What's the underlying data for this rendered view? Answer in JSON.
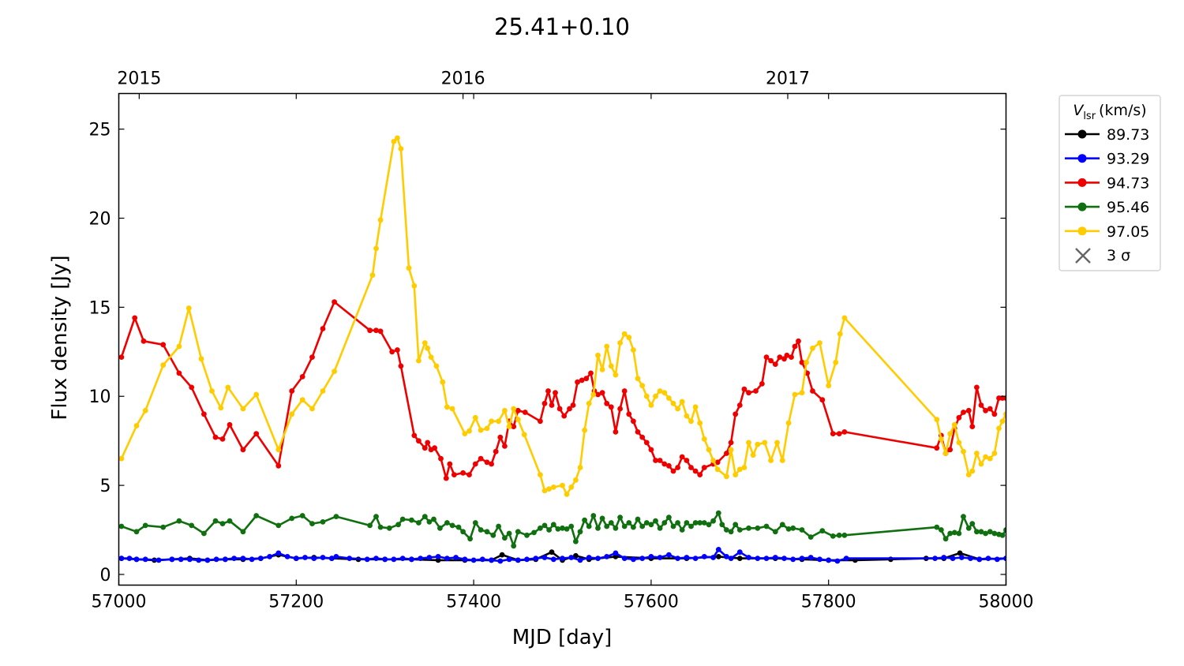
{
  "chart_data": {
    "type": "line",
    "title": "25.41+0.10",
    "xlabel": "MJD [day]",
    "ylabel": "Flux density [Jy]",
    "xlim": [
      57000,
      58000
    ],
    "ylim": [
      -0.6,
      27
    ],
    "x_ticks": [
      57000,
      57200,
      57400,
      57600,
      57800,
      58000
    ],
    "y_ticks": [
      0,
      5,
      10,
      15,
      20,
      25
    ],
    "top_axis": {
      "ticks": [
        {
          "label": "2015",
          "mjd": 57023
        },
        {
          "label": "2016",
          "mjd": 57388
        },
        {
          "label": "2017",
          "mjd": 57754
        }
      ]
    },
    "legend": {
      "title": "V_lsr (km/s)",
      "title_symbol": "V",
      "title_subscript": "lsr",
      "title_unit": "(km/s)",
      "placement": "outside right, top",
      "sigma_label": "3 σ",
      "sigma_color": "#666666"
    },
    "grid": false,
    "series": [
      {
        "name": "89.73",
        "color": "#000000",
        "x": [
          57003,
          57020,
          57040,
          57060,
          57080,
          57100,
          57120,
          57140,
          57160,
          57180,
          57200,
          57220,
          57240,
          57270,
          57300,
          57330,
          57360,
          57390,
          57420,
          57432,
          57450,
          57470,
          57488,
          57500,
          57515,
          57530,
          57560,
          57600,
          57640,
          57676,
          57700,
          57740,
          57770,
          57800,
          57830,
          57870,
          57910,
          57930,
          57948,
          57970,
          58000
        ],
        "y": [
          0.9,
          0.85,
          0.8,
          0.85,
          0.9,
          0.8,
          0.85,
          0.85,
          0.9,
          1.1,
          0.9,
          0.95,
          0.9,
          0.85,
          0.85,
          0.85,
          0.8,
          0.8,
          0.8,
          1.1,
          0.8,
          0.85,
          1.25,
          0.8,
          1.05,
          0.85,
          1.0,
          0.9,
          0.9,
          1.0,
          0.9,
          0.9,
          0.85,
          0.8,
          0.8,
          0.85,
          0.9,
          0.9,
          1.2,
          0.85,
          0.9
        ]
      },
      {
        "name": "93.29",
        "color": "#0000ff",
        "x": [
          57003,
          57012,
          57020,
          57030,
          57045,
          57060,
          57070,
          57080,
          57090,
          57100,
          57110,
          57120,
          57130,
          57140,
          57150,
          57160,
          57170,
          57180,
          57190,
          57200,
          57210,
          57220,
          57230,
          57240,
          57245,
          57260,
          57280,
          57290,
          57300,
          57310,
          57320,
          57330,
          57340,
          57350,
          57360,
          57370,
          57380,
          57390,
          57400,
          57410,
          57420,
          57430,
          57440,
          57450,
          57460,
          57470,
          57480,
          57490,
          57500,
          57510,
          57520,
          57530,
          57540,
          57550,
          57560,
          57570,
          57580,
          57590,
          57600,
          57610,
          57620,
          57630,
          57640,
          57650,
          57660,
          57670,
          57676,
          57685,
          57690,
          57700,
          57710,
          57720,
          57730,
          57740,
          57750,
          57760,
          57770,
          57780,
          57790,
          57800,
          57810,
          57820,
          57920,
          57930,
          57940,
          57950,
          57960,
          57970,
          57980,
          57990,
          58000
        ],
        "y": [
          0.9,
          0.9,
          0.85,
          0.85,
          0.8,
          0.85,
          0.85,
          0.85,
          0.8,
          0.8,
          0.85,
          0.85,
          0.9,
          0.9,
          0.85,
          0.9,
          1.0,
          1.2,
          1.0,
          0.9,
          0.95,
          0.9,
          0.95,
          0.9,
          1.0,
          0.9,
          0.85,
          0.9,
          0.85,
          0.85,
          0.9,
          0.85,
          0.9,
          0.95,
          1.0,
          0.9,
          0.95,
          0.85,
          0.8,
          0.85,
          0.8,
          0.75,
          0.85,
          0.8,
          0.85,
          0.9,
          0.95,
          0.85,
          0.9,
          0.95,
          0.8,
          0.95,
          0.9,
          1.0,
          1.2,
          0.9,
          0.85,
          0.9,
          1.0,
          0.95,
          1.1,
          0.9,
          0.95,
          0.9,
          1.0,
          0.95,
          1.4,
          1.0,
          0.9,
          1.25,
          0.95,
          0.9,
          0.9,
          0.95,
          0.9,
          0.85,
          0.9,
          0.95,
          0.85,
          0.8,
          0.75,
          0.9,
          0.9,
          0.95,
          0.9,
          0.95,
          0.9,
          0.85,
          0.9,
          0.85,
          0.9
        ]
      },
      {
        "name": "94.73",
        "color": "#ee0000",
        "x": [
          57003,
          57018,
          57028,
          57050,
          57068,
          57082,
          57096,
          57109,
          57117,
          57125,
          57140,
          57155,
          57180,
          57195,
          57207,
          57218,
          57230,
          57243,
          57283,
          57290,
          57295,
          57308,
          57314,
          57318,
          57333,
          57338,
          57345,
          57348,
          57352,
          57356,
          57363,
          57369,
          57373,
          57378,
          57388,
          57395,
          57402,
          57408,
          57415,
          57420,
          57425,
          57430,
          57435,
          57440,
          57445,
          57450,
          57458,
          57475,
          57480,
          57484,
          57488,
          57492,
          57497,
          57502,
          57508,
          57512,
          57517,
          57522,
          57527,
          57532,
          57536,
          57540,
          57545,
          57550,
          57555,
          57560,
          57565,
          57570,
          57575,
          57580,
          57585,
          57590,
          57595,
          57600,
          57605,
          57610,
          57615,
          57620,
          57625,
          57630,
          57635,
          57640,
          57645,
          57650,
          57655,
          57660,
          57670,
          57675,
          57685,
          57690,
          57695,
          57700,
          57705,
          57710,
          57718,
          57725,
          57730,
          57735,
          57740,
          57745,
          57750,
          57753,
          57758,
          57762,
          57766,
          57770,
          57776,
          57782,
          57793,
          57805,
          57812,
          57818,
          57922,
          57927,
          57932,
          57937,
          57942,
          57947,
          57952,
          57958,
          57962,
          57967,
          57972,
          57977,
          57982,
          57987,
          57992,
          57996,
          58000
        ],
        "y": [
          12.2,
          14.4,
          13.1,
          12.9,
          11.3,
          10.5,
          9.0,
          7.7,
          7.6,
          8.4,
          7.0,
          7.9,
          6.1,
          10.3,
          11.1,
          12.2,
          13.8,
          15.3,
          13.7,
          13.7,
          13.65,
          12.5,
          12.6,
          11.7,
          7.8,
          7.5,
          7.1,
          7.4,
          7.0,
          7.1,
          6.5,
          5.4,
          6.2,
          5.6,
          5.7,
          5.6,
          6.2,
          6.5,
          6.3,
          6.2,
          6.9,
          7.7,
          7.2,
          8.6,
          8.3,
          9.2,
          9.1,
          8.6,
          9.6,
          10.3,
          9.5,
          10.2,
          9.3,
          8.9,
          9.3,
          9.5,
          10.8,
          10.9,
          11.0,
          11.3,
          10.3,
          10.1,
          10.2,
          9.6,
          9.4,
          8.0,
          9.3,
          10.3,
          9.0,
          8.6,
          8.0,
          7.7,
          7.4,
          7.0,
          6.4,
          6.4,
          6.2,
          6.1,
          5.8,
          6.0,
          6.6,
          6.4,
          6.0,
          5.8,
          5.6,
          6.0,
          6.2,
          6.3,
          6.8,
          7.4,
          9.0,
          9.5,
          10.4,
          10.2,
          10.3,
          10.7,
          12.2,
          12.0,
          11.8,
          12.2,
          12.1,
          12.3,
          12.2,
          12.8,
          13.1,
          11.9,
          11.3,
          10.3,
          9.8,
          7.9,
          7.9,
          8.0,
          7.1,
          7.8,
          6.8,
          7.0,
          8.2,
          8.8,
          9.1,
          9.2,
          8.3,
          10.5,
          9.5,
          9.2,
          9.3,
          9.0,
          9.9,
          9.9,
          9.9
        ]
      },
      {
        "name": "95.46",
        "color": "#107010",
        "x": [
          57003,
          57020,
          57030,
          57050,
          57068,
          57082,
          57096,
          57109,
          57117,
          57125,
          57140,
          57155,
          57180,
          57195,
          57207,
          57218,
          57230,
          57245,
          57283,
          57290,
          57295,
          57305,
          57315,
          57320,
          57330,
          57338,
          57345,
          57350,
          57355,
          57362,
          57370,
          57376,
          57383,
          57388,
          57396,
          57402,
          57408,
          57415,
          57422,
          57428,
          57435,
          57440,
          57445,
          57450,
          57460,
          57468,
          57475,
          57480,
          57485,
          57490,
          57495,
          57500,
          57505,
          57510,
          57515,
          57520,
          57525,
          57530,
          57535,
          57540,
          57545,
          57550,
          57555,
          57560,
          57565,
          57570,
          57575,
          57580,
          57585,
          57590,
          57595,
          57600,
          57605,
          57610,
          57615,
          57620,
          57625,
          57630,
          57635,
          57640,
          57645,
          57650,
          57655,
          57660,
          57665,
          57670,
          57676,
          57680,
          57685,
          57690,
          57695,
          57700,
          57710,
          57720,
          57730,
          57740,
          57748,
          57755,
          57760,
          57770,
          57780,
          57793,
          57805,
          57812,
          57818,
          57922,
          57927,
          57932,
          57937,
          57942,
          57947,
          57952,
          57958,
          57962,
          57967,
          57972,
          57977,
          57982,
          57987,
          57992,
          57996,
          58000
        ],
        "y": [
          2.7,
          2.4,
          2.75,
          2.65,
          3.0,
          2.75,
          2.3,
          3.0,
          2.85,
          3.0,
          2.4,
          3.3,
          2.75,
          3.15,
          3.3,
          2.85,
          2.95,
          3.25,
          2.75,
          3.25,
          2.65,
          2.6,
          2.8,
          3.1,
          3.05,
          2.9,
          3.25,
          2.95,
          3.1,
          2.6,
          2.9,
          2.75,
          2.65,
          2.4,
          2.0,
          2.9,
          2.5,
          2.4,
          2.2,
          2.7,
          2.05,
          2.3,
          1.6,
          2.4,
          2.2,
          2.35,
          2.6,
          2.75,
          2.5,
          2.8,
          2.55,
          2.6,
          2.55,
          2.7,
          1.85,
          2.4,
          3.05,
          2.7,
          3.3,
          2.6,
          3.15,
          2.7,
          2.9,
          2.6,
          3.2,
          2.7,
          2.9,
          2.65,
          3.1,
          2.7,
          2.9,
          2.8,
          3.0,
          2.6,
          2.9,
          3.2,
          2.7,
          2.9,
          2.5,
          2.9,
          2.7,
          2.9,
          2.9,
          2.9,
          2.8,
          3.0,
          3.45,
          2.8,
          2.5,
          2.4,
          2.8,
          2.5,
          2.6,
          2.6,
          2.7,
          2.4,
          2.8,
          2.55,
          2.6,
          2.5,
          2.1,
          2.45,
          2.15,
          2.2,
          2.2,
          2.65,
          2.5,
          2.0,
          2.3,
          2.35,
          2.3,
          3.25,
          2.6,
          2.85,
          2.4,
          2.4,
          2.3,
          2.4,
          2.3,
          2.25,
          2.2,
          2.5
        ]
      },
      {
        "name": "97.05",
        "color": "#ffcc00",
        "x": [
          57003,
          57020,
          57030,
          57050,
          57068,
          57079,
          57093,
          57105,
          57115,
          57123,
          57140,
          57155,
          57180,
          57195,
          57207,
          57218,
          57230,
          57243,
          57286,
          57290,
          57295,
          57310,
          57314,
          57318,
          57327,
          57333,
          57338,
          57345,
          57348,
          57352,
          57358,
          57365,
          57370,
          57376,
          57390,
          57395,
          57402,
          57408,
          57415,
          57420,
          57428,
          57435,
          57440,
          57445,
          57450,
          57457,
          57475,
          57480,
          57485,
          57490,
          57500,
          57505,
          57510,
          57515,
          57520,
          57525,
          57530,
          57535,
          57540,
          57545,
          57550,
          57555,
          57560,
          57565,
          57570,
          57575,
          57580,
          57585,
          57590,
          57595,
          57600,
          57605,
          57610,
          57615,
          57620,
          57625,
          57630,
          57635,
          57640,
          57645,
          57650,
          57655,
          57660,
          57665,
          57670,
          57675,
          57685,
          57690,
          57695,
          57700,
          57705,
          57710,
          57715,
          57720,
          57728,
          57735,
          57742,
          57748,
          57755,
          57762,
          57770,
          57775,
          57782,
          57790,
          57800,
          57808,
          57813,
          57818,
          57922,
          57927,
          57932,
          57937,
          57942,
          57947,
          57952,
          57958,
          57962,
          57967,
          57972,
          57977,
          57982,
          57987,
          57992,
          57996,
          58000
        ],
        "y": [
          6.5,
          8.35,
          9.2,
          11.75,
          12.8,
          14.95,
          12.1,
          10.3,
          9.35,
          10.5,
          9.3,
          10.1,
          7.0,
          9.0,
          9.8,
          9.3,
          10.3,
          11.4,
          16.8,
          18.3,
          19.9,
          24.3,
          24.5,
          23.9,
          17.2,
          16.2,
          12.0,
          13.0,
          12.7,
          12.2,
          11.7,
          10.8,
          9.4,
          9.3,
          7.9,
          8.05,
          8.8,
          8.1,
          8.2,
          8.6,
          8.6,
          9.2,
          8.3,
          9.3,
          8.7,
          7.85,
          5.6,
          4.7,
          4.8,
          4.9,
          5.0,
          4.5,
          4.9,
          5.3,
          6.0,
          8.1,
          9.6,
          10.1,
          12.3,
          11.5,
          12.8,
          11.7,
          11.2,
          13.0,
          13.5,
          13.3,
          12.6,
          11.0,
          10.6,
          10.0,
          9.5,
          10.0,
          10.3,
          10.2,
          9.9,
          9.6,
          9.3,
          9.7,
          8.9,
          8.6,
          9.4,
          8.5,
          7.6,
          7.0,
          6.4,
          5.9,
          5.5,
          7.0,
          5.6,
          5.9,
          6.0,
          7.4,
          6.7,
          7.3,
          7.4,
          6.4,
          7.4,
          6.4,
          8.5,
          10.1,
          10.2,
          11.9,
          12.7,
          13.0,
          10.6,
          11.9,
          13.5,
          14.4,
          8.7,
          7.6,
          6.8,
          7.9,
          8.4,
          7.4,
          6.9,
          5.6,
          5.8,
          6.8,
          6.2,
          6.6,
          6.5,
          6.8,
          8.2,
          8.6,
          9.0
        ]
      }
    ]
  }
}
